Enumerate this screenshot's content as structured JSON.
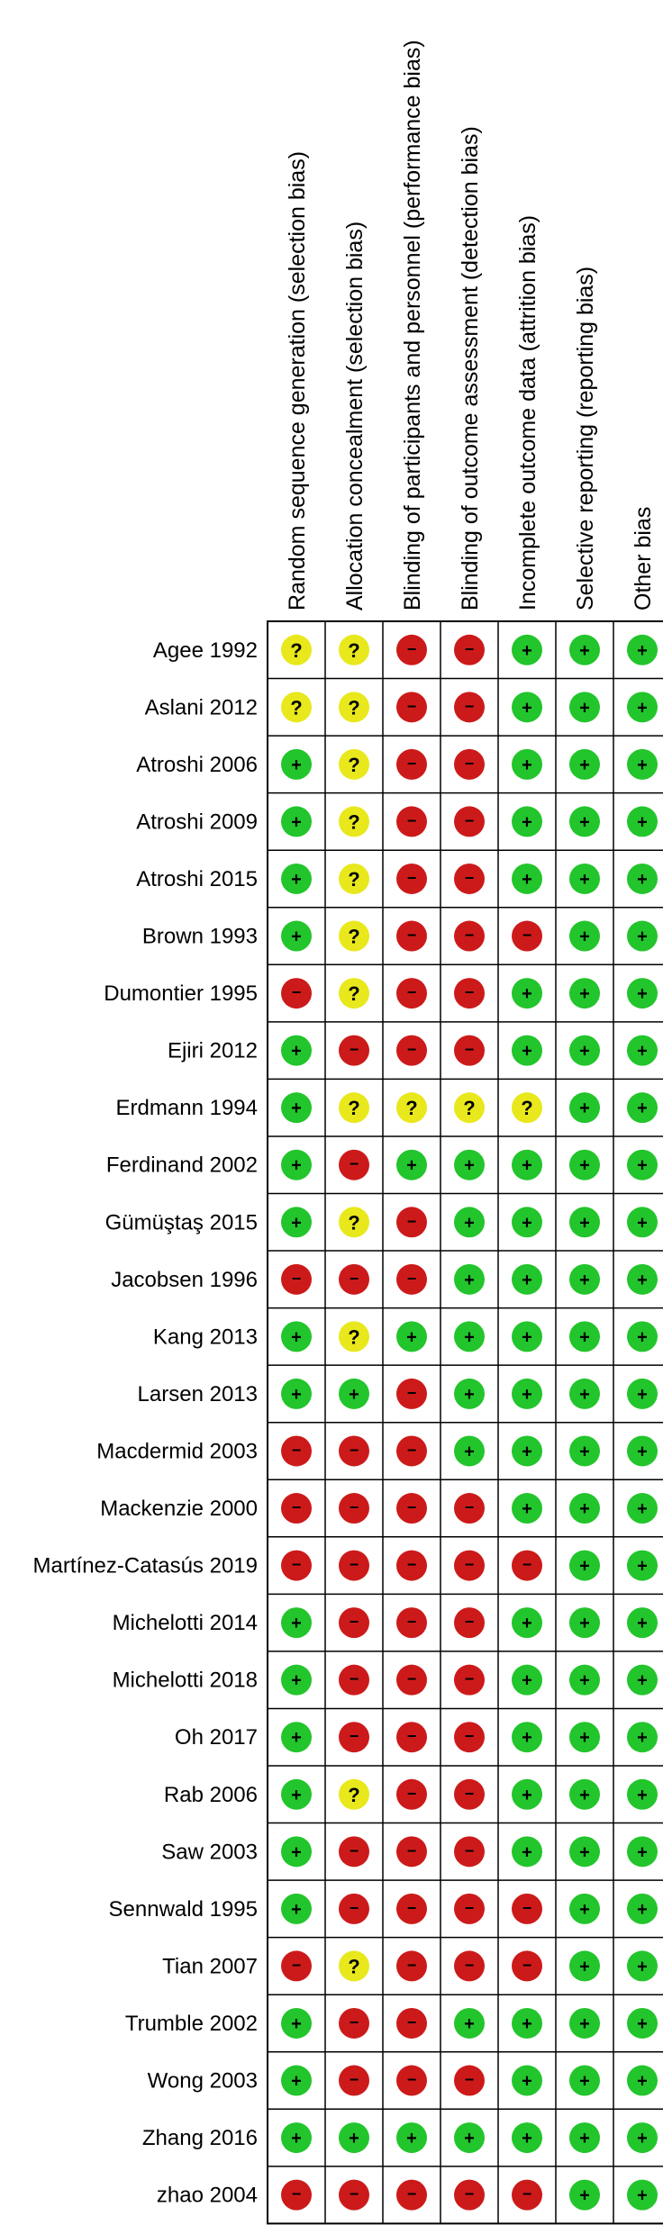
{
  "chart_data": {
    "type": "table",
    "columns": [
      "Random sequence generation (selection bias)",
      "Allocation concealment (selection bias)",
      "Blinding of participants and personnel (performance bias)",
      "Blinding of outcome assessment (detection bias)",
      "Incomplete outcome data (attrition bias)",
      "Selective reporting (reporting bias)",
      "Other bias"
    ],
    "legend": {
      "low": {
        "symbol": "+",
        "color": "#22c52b"
      },
      "unclear": {
        "symbol": "?",
        "color": "#e8e81c"
      },
      "high": {
        "symbol": "−",
        "color": "#cc1a1a"
      }
    },
    "rows": [
      {
        "study": "Agee 1992",
        "ratings": [
          "unclear",
          "unclear",
          "high",
          "high",
          "low",
          "low",
          "low"
        ]
      },
      {
        "study": "Aslani 2012",
        "ratings": [
          "unclear",
          "unclear",
          "high",
          "high",
          "low",
          "low",
          "low"
        ]
      },
      {
        "study": "Atroshi 2006",
        "ratings": [
          "low",
          "unclear",
          "high",
          "high",
          "low",
          "low",
          "low"
        ]
      },
      {
        "study": "Atroshi 2009",
        "ratings": [
          "low",
          "unclear",
          "high",
          "high",
          "low",
          "low",
          "low"
        ]
      },
      {
        "study": "Atroshi 2015",
        "ratings": [
          "low",
          "unclear",
          "high",
          "high",
          "low",
          "low",
          "low"
        ]
      },
      {
        "study": "Brown 1993",
        "ratings": [
          "low",
          "unclear",
          "high",
          "high",
          "high",
          "low",
          "low"
        ]
      },
      {
        "study": "Dumontier 1995",
        "ratings": [
          "high",
          "unclear",
          "high",
          "high",
          "low",
          "low",
          "low"
        ]
      },
      {
        "study": "Ejiri 2012",
        "ratings": [
          "low",
          "high",
          "high",
          "high",
          "low",
          "low",
          "low"
        ]
      },
      {
        "study": "Erdmann 1994",
        "ratings": [
          "low",
          "unclear",
          "unclear",
          "unclear",
          "unclear",
          "low",
          "low"
        ]
      },
      {
        "study": "Ferdinand 2002",
        "ratings": [
          "low",
          "high",
          "low",
          "low",
          "low",
          "low",
          "low"
        ]
      },
      {
        "study": "Gümüştaş 2015",
        "ratings": [
          "low",
          "unclear",
          "high",
          "low",
          "low",
          "low",
          "low"
        ]
      },
      {
        "study": "Jacobsen 1996",
        "ratings": [
          "high",
          "high",
          "high",
          "low",
          "low",
          "low",
          "low"
        ]
      },
      {
        "study": "Kang 2013",
        "ratings": [
          "low",
          "unclear",
          "low",
          "low",
          "low",
          "low",
          "low"
        ]
      },
      {
        "study": "Larsen 2013",
        "ratings": [
          "low",
          "low",
          "high",
          "low",
          "low",
          "low",
          "low"
        ]
      },
      {
        "study": "Macdermid 2003",
        "ratings": [
          "high",
          "high",
          "high",
          "low",
          "low",
          "low",
          "low"
        ]
      },
      {
        "study": "Mackenzie 2000",
        "ratings": [
          "high",
          "high",
          "high",
          "high",
          "low",
          "low",
          "low"
        ]
      },
      {
        "study": "Martínez-Catasús 2019",
        "ratings": [
          "high",
          "high",
          "high",
          "high",
          "high",
          "low",
          "low"
        ]
      },
      {
        "study": "Michelotti 2014",
        "ratings": [
          "low",
          "high",
          "high",
          "high",
          "low",
          "low",
          "low"
        ]
      },
      {
        "study": "Michelotti 2018",
        "ratings": [
          "low",
          "high",
          "high",
          "high",
          "low",
          "low",
          "low"
        ]
      },
      {
        "study": "Oh 2017",
        "ratings": [
          "low",
          "high",
          "high",
          "high",
          "low",
          "low",
          "low"
        ]
      },
      {
        "study": "Rab 2006",
        "ratings": [
          "low",
          "unclear",
          "high",
          "high",
          "low",
          "low",
          "low"
        ]
      },
      {
        "study": "Saw 2003",
        "ratings": [
          "low",
          "high",
          "high",
          "high",
          "low",
          "low",
          "low"
        ]
      },
      {
        "study": "Sennwald 1995",
        "ratings": [
          "low",
          "high",
          "high",
          "high",
          "high",
          "low",
          "low"
        ]
      },
      {
        "study": "Tian 2007",
        "ratings": [
          "high",
          "unclear",
          "high",
          "high",
          "high",
          "low",
          "low"
        ]
      },
      {
        "study": "Trumble 2002",
        "ratings": [
          "low",
          "high",
          "high",
          "low",
          "low",
          "low",
          "low"
        ]
      },
      {
        "study": "Wong 2003",
        "ratings": [
          "low",
          "high",
          "high",
          "high",
          "low",
          "low",
          "low"
        ]
      },
      {
        "study": "Zhang 2016",
        "ratings": [
          "low",
          "low",
          "low",
          "low",
          "low",
          "low",
          "low"
        ]
      },
      {
        "study": "zhao 2004",
        "ratings": [
          "high",
          "high",
          "high",
          "high",
          "high",
          "low",
          "low"
        ]
      }
    ]
  }
}
